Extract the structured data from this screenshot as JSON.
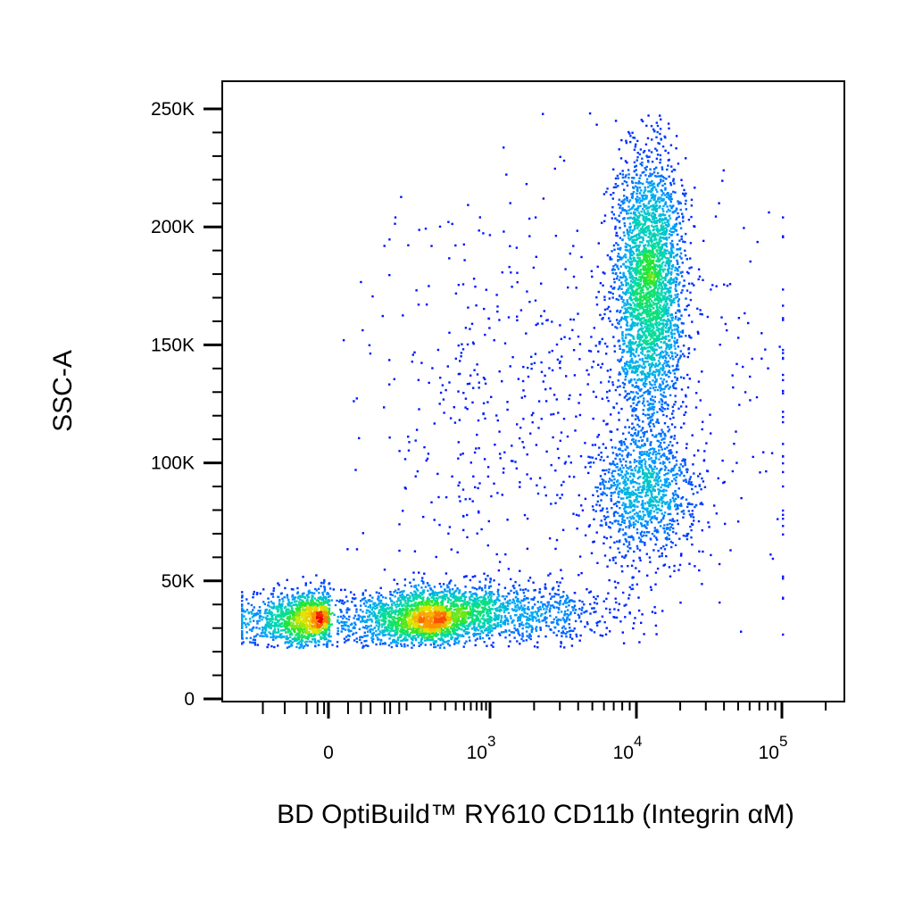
{
  "chart_data": {
    "type": "scatter",
    "title": "",
    "xlabel": "BD OptiBuild™ RY610 CD11b (Integrin αM)",
    "ylabel": "SSC-A",
    "x_scale": "biexponential",
    "y_scale": "linear",
    "xlim": [
      -400,
      100000
    ],
    "ylim": [
      0,
      262144
    ],
    "grid": false,
    "legend": "none",
    "color_scale": "density (blue → cyan → green → yellow → red)",
    "y_ticks": [
      {
        "value": 0,
        "label": "0"
      },
      {
        "value": 50000,
        "label": "50K"
      },
      {
        "value": 100000,
        "label": "100K"
      },
      {
        "value": 150000,
        "label": "150K"
      },
      {
        "value": 200000,
        "label": "200K"
      },
      {
        "value": 250000,
        "label": "250K"
      }
    ],
    "x_ticks": [
      {
        "value": 0,
        "base": "0",
        "exp": ""
      },
      {
        "value": 1000,
        "base": "10",
        "exp": "3"
      },
      {
        "value": 10000,
        "base": "10",
        "exp": "4"
      },
      {
        "value": 100000,
        "base": "10",
        "exp": "5"
      }
    ],
    "populations": [
      {
        "center_x": 0,
        "center_y": 34000,
        "spread_x_decades": 0.5,
        "spread_y": 6000,
        "relative_density": 0.3
      },
      {
        "center_x": 700,
        "center_y": 37000,
        "spread_x_decades": 0.5,
        "spread_y": 6000,
        "relative_density": 0.17
      },
      {
        "center_x": 12000,
        "center_y": 175000,
        "spread_x_decades": 0.12,
        "spread_y": 28000,
        "relative_density": 0.33
      },
      {
        "center_x": 11000,
        "center_y": 88000,
        "spread_x_decades": 0.18,
        "spread_y": 14000,
        "relative_density": 0.12
      },
      {
        "center_x": 2500,
        "center_y": 120000,
        "spread_x_decades": 0.9,
        "spread_y": 50000,
        "relative_density": 0.08
      }
    ]
  }
}
